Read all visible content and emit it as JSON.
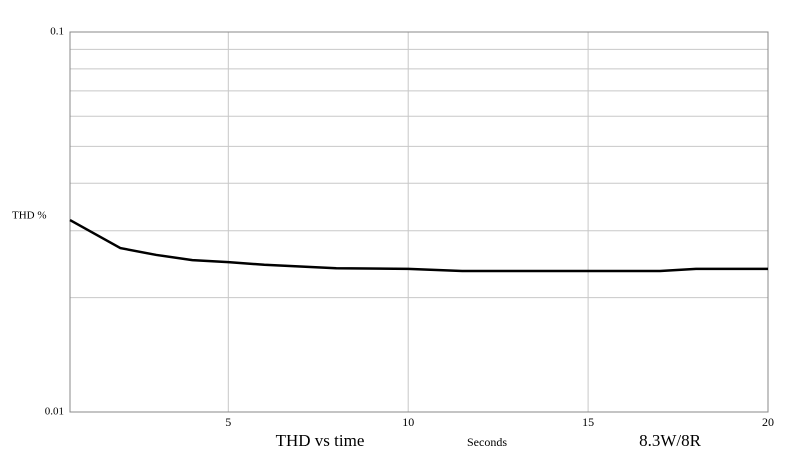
{
  "chart_data": {
    "type": "line",
    "title": "THD vs time",
    "x_label": "Seconds",
    "y_label": "THD %",
    "annotation": "8.3W/8R",
    "x": [
      0.6,
      2,
      3,
      4,
      5,
      6,
      8,
      10,
      11.5,
      17,
      18,
      20
    ],
    "series": [
      {
        "name": "THD",
        "color": "#000000",
        "values": [
          0.032,
          0.027,
          0.0259,
          0.0251,
          0.0248,
          0.0244,
          0.0239,
          0.0238,
          0.0235,
          0.0235,
          0.0238,
          0.0238
        ]
      }
    ],
    "xlim": [
      0.6,
      20
    ],
    "xticks": [
      5,
      10,
      15,
      20
    ],
    "ylim": [
      0.01,
      0.1
    ],
    "yticks": [
      0.01,
      0.1
    ],
    "y_scale": "log",
    "minor_yticks": [
      0.02,
      0.03,
      0.04,
      0.05,
      0.06,
      0.07,
      0.08,
      0.09
    ],
    "grid": true
  }
}
